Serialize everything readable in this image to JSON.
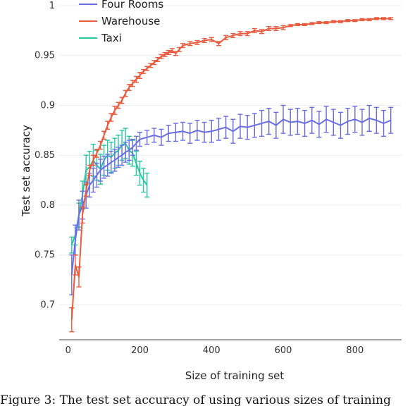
{
  "chart_data": {
    "type": "line",
    "title": "",
    "xlabel": "Size of training set",
    "ylabel": "Test set accuracy",
    "xlim": [
      -25,
      930
    ],
    "ylim": [
      0.665,
      1.0
    ],
    "x_ticks": [
      0,
      200,
      400,
      600,
      800
    ],
    "y_ticks": [
      0.7,
      0.75,
      0.8,
      0.85,
      0.9,
      0.95,
      1
    ],
    "y_tick_labels": [
      "0.7",
      "0.75",
      "0.8",
      "0.85",
      "0.9",
      "0.95",
      "1"
    ],
    "grid": "horizontal",
    "legend_position": "top-left",
    "error_bars": true,
    "series": [
      {
        "name": "Four Rooms",
        "color": "#6a6ee6",
        "x": [
          10,
          20,
          30,
          40,
          50,
          60,
          70,
          80,
          90,
          100,
          110,
          120,
          130,
          140,
          150,
          160,
          170,
          180,
          190,
          200,
          220,
          240,
          260,
          280,
          300,
          320,
          340,
          360,
          380,
          400,
          420,
          440,
          460,
          480,
          500,
          520,
          540,
          560,
          580,
          600,
          620,
          640,
          660,
          680,
          700,
          720,
          740,
          760,
          780,
          800,
          820,
          840,
          860,
          880,
          900
        ],
        "y": [
          0.73,
          0.765,
          0.79,
          0.8,
          0.81,
          0.82,
          0.825,
          0.83,
          0.835,
          0.838,
          0.84,
          0.843,
          0.845,
          0.848,
          0.85,
          0.853,
          0.855,
          0.858,
          0.862,
          0.866,
          0.868,
          0.87,
          0.868,
          0.872,
          0.873,
          0.874,
          0.872,
          0.875,
          0.873,
          0.874,
          0.876,
          0.878,
          0.874,
          0.879,
          0.878,
          0.88,
          0.882,
          0.884,
          0.88,
          0.886,
          0.883,
          0.884,
          0.882,
          0.885,
          0.881,
          0.886,
          0.883,
          0.88,
          0.884,
          0.886,
          0.883,
          0.887,
          0.885,
          0.882,
          0.885
        ],
        "err": [
          0.02,
          0.015,
          0.015,
          0.014,
          0.013,
          0.012,
          0.012,
          0.012,
          0.011,
          0.011,
          0.011,
          0.011,
          0.011,
          0.01,
          0.01,
          0.01,
          0.01,
          0.008,
          0.007,
          0.007,
          0.007,
          0.007,
          0.008,
          0.008,
          0.009,
          0.009,
          0.01,
          0.01,
          0.01,
          0.011,
          0.011,
          0.011,
          0.012,
          0.012,
          0.012,
          0.012,
          0.013,
          0.013,
          0.013,
          0.014,
          0.013,
          0.013,
          0.013,
          0.013,
          0.013,
          0.013,
          0.013,
          0.013,
          0.013,
          0.013,
          0.013,
          0.013,
          0.013,
          0.013,
          0.013
        ]
      },
      {
        "name": "Warehouse",
        "color": "#ea5a3c",
        "x": [
          10,
          20,
          30,
          40,
          50,
          60,
          70,
          80,
          90,
          100,
          110,
          120,
          130,
          140,
          150,
          160,
          170,
          180,
          190,
          200,
          210,
          220,
          230,
          240,
          250,
          260,
          270,
          280,
          290,
          300,
          310,
          320,
          340,
          360,
          380,
          400,
          420,
          440,
          460,
          480,
          500,
          520,
          540,
          560,
          580,
          600,
          620,
          640,
          660,
          680,
          700,
          720,
          740,
          760,
          780,
          800,
          820,
          840,
          860,
          880,
          900
        ],
        "y": [
          0.685,
          0.74,
          0.728,
          0.79,
          0.815,
          0.835,
          0.845,
          0.852,
          0.86,
          0.87,
          0.88,
          0.888,
          0.895,
          0.9,
          0.905,
          0.912,
          0.918,
          0.922,
          0.926,
          0.93,
          0.934,
          0.937,
          0.94,
          0.943,
          0.946,
          0.949,
          0.951,
          0.953,
          0.955,
          0.952,
          0.956,
          0.96,
          0.962,
          0.963,
          0.965,
          0.966,
          0.962,
          0.968,
          0.97,
          0.972,
          0.972,
          0.975,
          0.974,
          0.977,
          0.977,
          0.978,
          0.98,
          0.981,
          0.981,
          0.982,
          0.983,
          0.983,
          0.984,
          0.984,
          0.985,
          0.985,
          0.986,
          0.986,
          0.987,
          0.987,
          0.987
        ],
        "err": [
          0.012,
          0.01,
          0.01,
          0.008,
          0.006,
          0.005,
          0.005,
          0.004,
          0.004,
          0.004,
          0.004,
          0.004,
          0.004,
          0.003,
          0.003,
          0.003,
          0.003,
          0.003,
          0.003,
          0.003,
          0.002,
          0.002,
          0.002,
          0.002,
          0.002,
          0.002,
          0.002,
          0.002,
          0.002,
          0.002,
          0.002,
          0.002,
          0.002,
          0.002,
          0.002,
          0.002,
          0.002,
          0.002,
          0.002,
          0.002,
          0.002,
          0.002,
          0.002,
          0.002,
          0.002,
          0.002,
          0.001,
          0.001,
          0.001,
          0.001,
          0.001,
          0.001,
          0.001,
          0.001,
          0.001,
          0.001,
          0.001,
          0.001,
          0.001,
          0.001,
          0.001
        ]
      },
      {
        "name": "Taxi",
        "color": "#26c7a0",
        "x": [
          10,
          20,
          30,
          40,
          50,
          60,
          70,
          80,
          90,
          100,
          110,
          120,
          130,
          140,
          150,
          160,
          170,
          180,
          190,
          200,
          210,
          220
        ],
        "y": [
          0.76,
          0.77,
          0.79,
          0.81,
          0.835,
          0.838,
          0.845,
          0.84,
          0.836,
          0.845,
          0.85,
          0.848,
          0.852,
          0.855,
          0.86,
          0.862,
          0.855,
          0.852,
          0.842,
          0.832,
          0.825,
          0.82
        ],
        "err": [
          0.008,
          0.01,
          0.012,
          0.014,
          0.015,
          0.016,
          0.016,
          0.015,
          0.015,
          0.015,
          0.015,
          0.015,
          0.015,
          0.015,
          0.015,
          0.015,
          0.014,
          0.013,
          0.012,
          0.012,
          0.012,
          0.012
        ]
      }
    ]
  },
  "caption": {
    "text": "Figure 3: The test set accuracy of using various sizes of training"
  }
}
